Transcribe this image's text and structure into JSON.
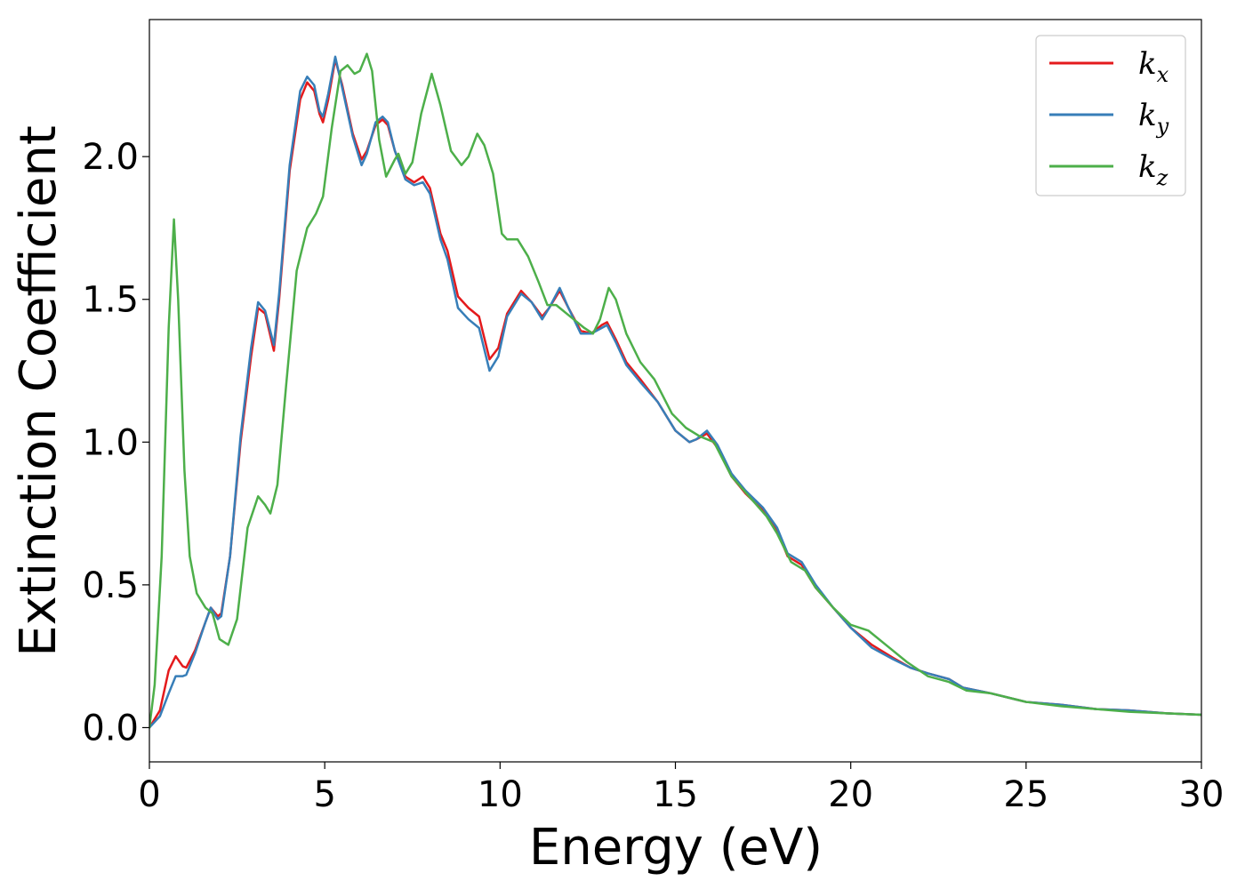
{
  "chart_data": {
    "type": "line",
    "xlabel": "Energy (eV)",
    "ylabel": "Extinction Coefficient",
    "xlim": [
      0,
      30
    ],
    "ylim": [
      -0.12,
      2.48
    ],
    "xticks": [
      0,
      5,
      10,
      15,
      20,
      25,
      30
    ],
    "xtick_labels": [
      "0",
      "5",
      "10",
      "15",
      "20",
      "25",
      "30"
    ],
    "yticks": [
      0.0,
      0.5,
      1.0,
      1.5,
      2.0
    ],
    "ytick_labels": [
      "0.0",
      "0.5",
      "1.0",
      "1.5",
      "2.0"
    ],
    "grid": false,
    "legend_position": "top-right",
    "series": [
      {
        "name": "k",
        "sub": "x",
        "color": "#e41a1c",
        "points": [
          [
            0,
            0
          ],
          [
            0.3,
            0.06
          ],
          [
            0.55,
            0.2
          ],
          [
            0.75,
            0.25
          ],
          [
            0.95,
            0.215
          ],
          [
            1.05,
            0.21
          ],
          [
            1.3,
            0.27
          ],
          [
            1.6,
            0.37
          ],
          [
            1.75,
            0.42
          ],
          [
            1.95,
            0.39
          ],
          [
            2.05,
            0.4
          ],
          [
            2.3,
            0.6
          ],
          [
            2.6,
            1.0
          ],
          [
            2.9,
            1.3
          ],
          [
            3.1,
            1.47
          ],
          [
            3.3,
            1.45
          ],
          [
            3.55,
            1.32
          ],
          [
            3.7,
            1.5
          ],
          [
            4.0,
            1.95
          ],
          [
            4.3,
            2.2
          ],
          [
            4.5,
            2.26
          ],
          [
            4.7,
            2.23
          ],
          [
            4.85,
            2.15
          ],
          [
            4.95,
            2.12
          ],
          [
            5.1,
            2.2
          ],
          [
            5.3,
            2.34
          ],
          [
            5.5,
            2.25
          ],
          [
            5.8,
            2.08
          ],
          [
            6.05,
            1.99
          ],
          [
            6.2,
            2.02
          ],
          [
            6.45,
            2.11
          ],
          [
            6.65,
            2.13
          ],
          [
            6.8,
            2.11
          ],
          [
            7.0,
            2.02
          ],
          [
            7.3,
            1.93
          ],
          [
            7.55,
            1.91
          ],
          [
            7.8,
            1.93
          ],
          [
            8.0,
            1.89
          ],
          [
            8.3,
            1.73
          ],
          [
            8.5,
            1.67
          ],
          [
            8.8,
            1.51
          ],
          [
            9.1,
            1.47
          ],
          [
            9.4,
            1.44
          ],
          [
            9.7,
            1.29
          ],
          [
            9.95,
            1.33
          ],
          [
            10.2,
            1.45
          ],
          [
            10.6,
            1.53
          ],
          [
            10.9,
            1.49
          ],
          [
            11.2,
            1.44
          ],
          [
            11.4,
            1.47
          ],
          [
            11.7,
            1.53
          ],
          [
            11.95,
            1.47
          ],
          [
            12.3,
            1.39
          ],
          [
            12.6,
            1.38
          ],
          [
            12.9,
            1.41
          ],
          [
            13.05,
            1.42
          ],
          [
            13.3,
            1.36
          ],
          [
            13.6,
            1.28
          ],
          [
            14.0,
            1.22
          ],
          [
            14.5,
            1.14
          ],
          [
            15.0,
            1.04
          ],
          [
            15.4,
            1.0
          ],
          [
            15.6,
            1.01
          ],
          [
            15.9,
            1.03
          ],
          [
            16.2,
            0.98
          ],
          [
            16.6,
            0.88
          ],
          [
            17.0,
            0.82
          ],
          [
            17.5,
            0.76
          ],
          [
            17.9,
            0.69
          ],
          [
            18.2,
            0.6
          ],
          [
            18.6,
            0.57
          ],
          [
            19.0,
            0.49
          ],
          [
            19.5,
            0.42
          ],
          [
            20.0,
            0.35
          ],
          [
            20.6,
            0.29
          ],
          [
            21.2,
            0.245
          ],
          [
            21.7,
            0.21
          ],
          [
            22.2,
            0.19
          ],
          [
            22.8,
            0.17
          ],
          [
            23.2,
            0.14
          ],
          [
            24.0,
            0.12
          ],
          [
            25.0,
            0.09
          ],
          [
            26.0,
            0.08
          ],
          [
            27.0,
            0.065
          ],
          [
            28.0,
            0.06
          ],
          [
            29.0,
            0.05
          ],
          [
            30.0,
            0.045
          ]
        ]
      },
      {
        "name": "k",
        "sub": "y",
        "color": "#377eb8",
        "points": [
          [
            0,
            0
          ],
          [
            0.3,
            0.04
          ],
          [
            0.55,
            0.12
          ],
          [
            0.75,
            0.18
          ],
          [
            0.95,
            0.18
          ],
          [
            1.05,
            0.185
          ],
          [
            1.3,
            0.26
          ],
          [
            1.6,
            0.37
          ],
          [
            1.75,
            0.42
          ],
          [
            1.95,
            0.38
          ],
          [
            2.05,
            0.39
          ],
          [
            2.3,
            0.6
          ],
          [
            2.6,
            1.02
          ],
          [
            2.9,
            1.33
          ],
          [
            3.1,
            1.49
          ],
          [
            3.3,
            1.46
          ],
          [
            3.55,
            1.34
          ],
          [
            3.7,
            1.52
          ],
          [
            4.0,
            1.97
          ],
          [
            4.3,
            2.23
          ],
          [
            4.5,
            2.28
          ],
          [
            4.7,
            2.25
          ],
          [
            4.85,
            2.16
          ],
          [
            4.95,
            2.14
          ],
          [
            5.1,
            2.22
          ],
          [
            5.3,
            2.35
          ],
          [
            5.5,
            2.24
          ],
          [
            5.8,
            2.07
          ],
          [
            6.05,
            1.97
          ],
          [
            6.2,
            2.01
          ],
          [
            6.45,
            2.12
          ],
          [
            6.65,
            2.14
          ],
          [
            6.8,
            2.12
          ],
          [
            7.0,
            2.02
          ],
          [
            7.3,
            1.92
          ],
          [
            7.55,
            1.9
          ],
          [
            7.8,
            1.91
          ],
          [
            8.0,
            1.87
          ],
          [
            8.3,
            1.71
          ],
          [
            8.5,
            1.64
          ],
          [
            8.8,
            1.47
          ],
          [
            9.1,
            1.43
          ],
          [
            9.4,
            1.4
          ],
          [
            9.7,
            1.25
          ],
          [
            9.95,
            1.3
          ],
          [
            10.2,
            1.44
          ],
          [
            10.6,
            1.52
          ],
          [
            10.9,
            1.49
          ],
          [
            11.2,
            1.43
          ],
          [
            11.4,
            1.47
          ],
          [
            11.7,
            1.54
          ],
          [
            11.95,
            1.47
          ],
          [
            12.3,
            1.38
          ],
          [
            12.6,
            1.38
          ],
          [
            12.9,
            1.4
          ],
          [
            13.05,
            1.41
          ],
          [
            13.3,
            1.35
          ],
          [
            13.6,
            1.27
          ],
          [
            14.0,
            1.21
          ],
          [
            14.5,
            1.14
          ],
          [
            15.0,
            1.04
          ],
          [
            15.4,
            1.0
          ],
          [
            15.6,
            1.01
          ],
          [
            15.9,
            1.04
          ],
          [
            16.2,
            0.99
          ],
          [
            16.6,
            0.89
          ],
          [
            17.0,
            0.83
          ],
          [
            17.5,
            0.77
          ],
          [
            17.9,
            0.7
          ],
          [
            18.2,
            0.61
          ],
          [
            18.6,
            0.58
          ],
          [
            19.0,
            0.5
          ],
          [
            19.5,
            0.42
          ],
          [
            20.0,
            0.35
          ],
          [
            20.6,
            0.28
          ],
          [
            21.2,
            0.24
          ],
          [
            21.7,
            0.21
          ],
          [
            22.2,
            0.19
          ],
          [
            22.8,
            0.17
          ],
          [
            23.2,
            0.14
          ],
          [
            24.0,
            0.12
          ],
          [
            25.0,
            0.09
          ],
          [
            26.0,
            0.08
          ],
          [
            27.0,
            0.065
          ],
          [
            28.0,
            0.06
          ],
          [
            29.0,
            0.05
          ],
          [
            30.0,
            0.045
          ]
        ]
      },
      {
        "name": "k",
        "sub": "z",
        "color": "#4daf4a",
        "points": [
          [
            0,
            0
          ],
          [
            0.15,
            0.15
          ],
          [
            0.35,
            0.6
          ],
          [
            0.55,
            1.4
          ],
          [
            0.7,
            1.78
          ],
          [
            0.82,
            1.5
          ],
          [
            1.0,
            0.9
          ],
          [
            1.15,
            0.6
          ],
          [
            1.35,
            0.47
          ],
          [
            1.6,
            0.42
          ],
          [
            1.8,
            0.4
          ],
          [
            2.0,
            0.31
          ],
          [
            2.25,
            0.29
          ],
          [
            2.5,
            0.38
          ],
          [
            2.8,
            0.7
          ],
          [
            3.1,
            0.81
          ],
          [
            3.3,
            0.78
          ],
          [
            3.45,
            0.75
          ],
          [
            3.65,
            0.85
          ],
          [
            3.9,
            1.2
          ],
          [
            4.2,
            1.6
          ],
          [
            4.5,
            1.75
          ],
          [
            4.75,
            1.8
          ],
          [
            4.95,
            1.86
          ],
          [
            5.2,
            2.1
          ],
          [
            5.45,
            2.3
          ],
          [
            5.65,
            2.32
          ],
          [
            5.85,
            2.29
          ],
          [
            6.0,
            2.3
          ],
          [
            6.2,
            2.36
          ],
          [
            6.35,
            2.3
          ],
          [
            6.55,
            2.06
          ],
          [
            6.75,
            1.93
          ],
          [
            7.0,
            1.99
          ],
          [
            7.1,
            2.01
          ],
          [
            7.3,
            1.94
          ],
          [
            7.5,
            1.98
          ],
          [
            7.75,
            2.15
          ],
          [
            8.05,
            2.29
          ],
          [
            8.3,
            2.18
          ],
          [
            8.6,
            2.02
          ],
          [
            8.9,
            1.97
          ],
          [
            9.1,
            2.0
          ],
          [
            9.35,
            2.08
          ],
          [
            9.55,
            2.04
          ],
          [
            9.8,
            1.94
          ],
          [
            10.05,
            1.73
          ],
          [
            10.2,
            1.71
          ],
          [
            10.5,
            1.71
          ],
          [
            10.8,
            1.65
          ],
          [
            11.1,
            1.56
          ],
          [
            11.35,
            1.48
          ],
          [
            11.6,
            1.48
          ],
          [
            11.9,
            1.45
          ],
          [
            12.2,
            1.42
          ],
          [
            12.4,
            1.4
          ],
          [
            12.65,
            1.38
          ],
          [
            12.85,
            1.43
          ],
          [
            13.1,
            1.54
          ],
          [
            13.3,
            1.5
          ],
          [
            13.6,
            1.38
          ],
          [
            14.0,
            1.28
          ],
          [
            14.4,
            1.22
          ],
          [
            14.9,
            1.1
          ],
          [
            15.3,
            1.05
          ],
          [
            15.7,
            1.02
          ],
          [
            16.1,
            1.0
          ],
          [
            16.6,
            0.88
          ],
          [
            17.1,
            0.81
          ],
          [
            17.6,
            0.74
          ],
          [
            17.9,
            0.68
          ],
          [
            18.3,
            0.58
          ],
          [
            18.7,
            0.55
          ],
          [
            19.0,
            0.49
          ],
          [
            19.5,
            0.42
          ],
          [
            20.0,
            0.36
          ],
          [
            20.5,
            0.34
          ],
          [
            21.0,
            0.29
          ],
          [
            21.6,
            0.23
          ],
          [
            22.2,
            0.18
          ],
          [
            22.8,
            0.16
          ],
          [
            23.3,
            0.13
          ],
          [
            24.0,
            0.12
          ],
          [
            25.0,
            0.09
          ],
          [
            26.0,
            0.075
          ],
          [
            27.0,
            0.065
          ],
          [
            28.0,
            0.055
          ],
          [
            29.0,
            0.05
          ],
          [
            30.0,
            0.045
          ]
        ]
      }
    ]
  }
}
